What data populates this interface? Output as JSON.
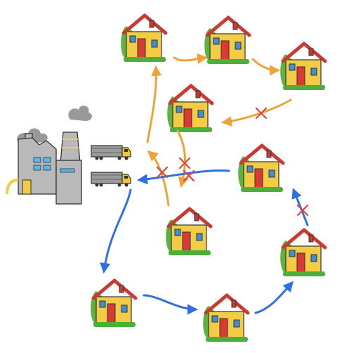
{
  "diagram": {
    "type": "illustration",
    "colors": {
      "background": "#ffffff",
      "route_orange": "#f0a23a",
      "route_blue": "#2f6fe6",
      "cross_red": "#e0463a",
      "house_wall": "#f2cc45",
      "roof": "#c83a33",
      "door": "#d93b34",
      "window": "#3f8fd6",
      "tree": "#5db33e",
      "grass": "#4caf3a",
      "factory": "#b9b9b9",
      "factory_window": "#55b8e8",
      "factory_door": "#f2cc45",
      "truck_cab": "#f2c53a",
      "truck_trailer": "#9a9a9a",
      "smoke": "#999999"
    },
    "nodes": [
      {
        "id": "factory",
        "kind": "factory",
        "icon": "factory-icon"
      },
      {
        "id": "truck-top",
        "kind": "truck",
        "icon": "truck-icon"
      },
      {
        "id": "truck-bottom",
        "kind": "truck",
        "icon": "truck-icon"
      },
      {
        "id": "house-1",
        "kind": "house",
        "icon": "house-icon"
      },
      {
        "id": "house-2",
        "kind": "house",
        "icon": "house-icon"
      },
      {
        "id": "house-3",
        "kind": "house",
        "icon": "house-icon"
      },
      {
        "id": "house-4",
        "kind": "house",
        "icon": "house-icon"
      },
      {
        "id": "house-5",
        "kind": "house",
        "icon": "house-icon"
      },
      {
        "id": "house-6",
        "kind": "house",
        "icon": "house-icon"
      },
      {
        "id": "house-7",
        "kind": "house",
        "icon": "house-icon"
      },
      {
        "id": "house-8",
        "kind": "house",
        "icon": "house-icon"
      },
      {
        "id": "house-9",
        "kind": "house",
        "icon": "house-icon"
      }
    ],
    "routes": [
      {
        "name": "orange-route",
        "color": "#f0a23a",
        "blocked_segments": 4
      },
      {
        "name": "blue-route",
        "color": "#2f6fe6",
        "blocked_segments": 2
      }
    ]
  }
}
